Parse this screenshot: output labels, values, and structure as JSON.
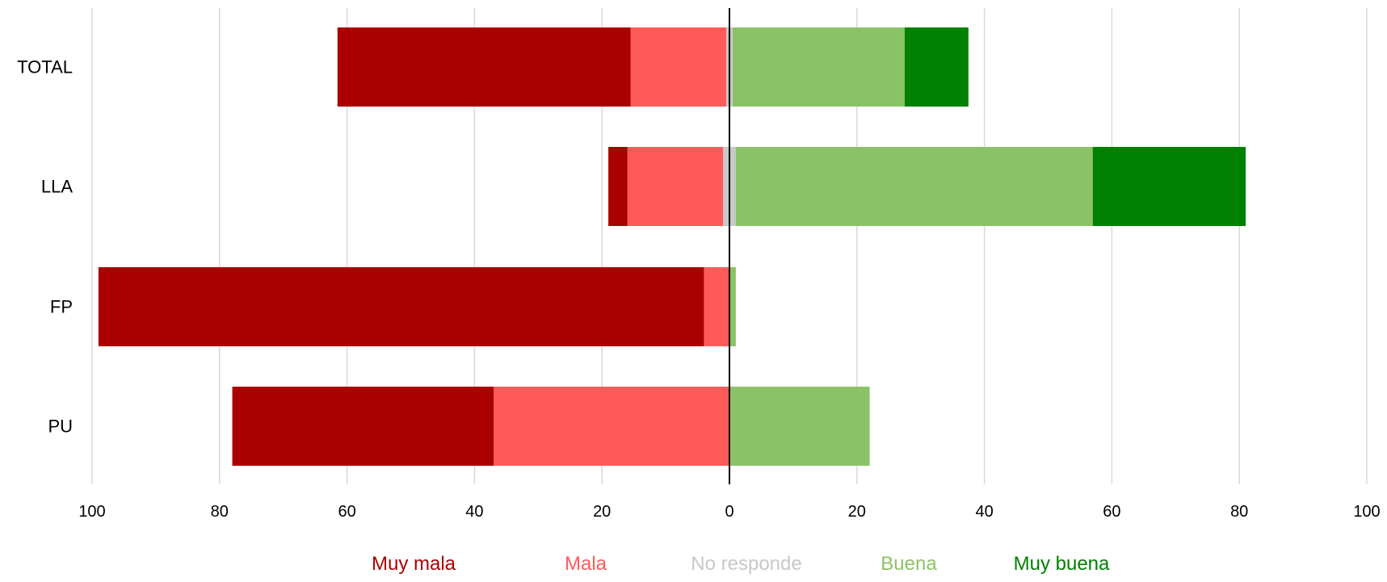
{
  "chart_data": {
    "type": "bar",
    "orientation": "horizontal",
    "stacking": "diverging",
    "categories": [
      "TOTAL",
      "LLA",
      "FP",
      "PU"
    ],
    "series": [
      {
        "name": "Muy mala",
        "side": "negative",
        "color": "#aa0000",
        "values": [
          46,
          3,
          95,
          41
        ]
      },
      {
        "name": "Mala",
        "side": "negative",
        "color": "#ff5a5a",
        "values": [
          15,
          15,
          4,
          37
        ]
      },
      {
        "name": "No responde",
        "side": "center",
        "color": "#c8c8c8",
        "values": [
          1,
          2,
          0,
          0
        ]
      },
      {
        "name": "Buena",
        "side": "positive",
        "color": "#8cc267",
        "values": [
          27,
          56,
          1,
          22
        ]
      },
      {
        "name": "Muy buena",
        "side": "positive",
        "color": "#008000",
        "values": [
          10,
          24,
          0,
          0
        ]
      }
    ],
    "x_ticks": [
      100,
      80,
      60,
      40,
      20,
      0,
      20,
      40,
      60,
      80,
      100
    ],
    "xlim": [
      -100,
      100
    ],
    "grid": true,
    "legend_position": "bottom"
  }
}
